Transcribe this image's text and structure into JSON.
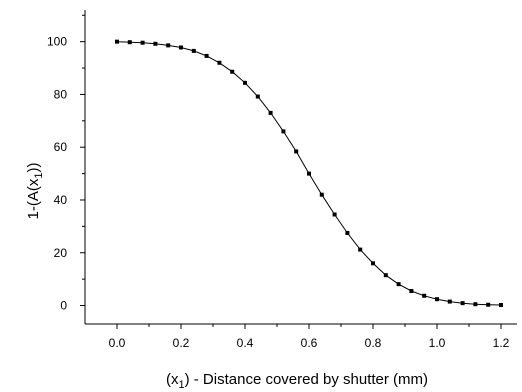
{
  "chart_data": {
    "type": "line",
    "title": "",
    "xlabel": "(x₁) - Distance covered by shutter (mm)",
    "xlabel_parts": {
      "open": "(x",
      "sub": "1",
      "close": ") - Distance covered by shutter (mm)"
    },
    "ylabel": "1-(A(x₁))",
    "ylabel_parts": {
      "open": "1-(A(x",
      "sub": "1",
      "close": "))"
    },
    "xlim": [
      -0.1,
      1.25
    ],
    "ylim": [
      -7,
      112
    ],
    "xticks": [
      0.0,
      0.2,
      0.4,
      0.6,
      0.8,
      1.0,
      1.2
    ],
    "xtick_labels": [
      "0.0",
      "0.2",
      "0.4",
      "0.6",
      "0.8",
      "1.0",
      "1.2"
    ],
    "yticks": [
      0,
      20,
      40,
      60,
      80,
      100
    ],
    "ytick_labels": [
      "0",
      "20",
      "40",
      "60",
      "80",
      "100"
    ],
    "grid": false,
    "legend": "none",
    "line_color": "#000000",
    "marker": "square",
    "series": [
      {
        "x": [
          0.0,
          0.04,
          0.08,
          0.12,
          0.16,
          0.2,
          0.24,
          0.28,
          0.32,
          0.36,
          0.4,
          0.44,
          0.48,
          0.52,
          0.56,
          0.6,
          0.64,
          0.68,
          0.72,
          0.76,
          0.8,
          0.84,
          0.88,
          0.92,
          0.96,
          1.0,
          1.04,
          1.08,
          1.12,
          1.16,
          1.2
        ],
        "values": [
          100,
          99.8,
          99.6,
          99.2,
          98.6,
          97.8,
          96.5,
          94.6,
          92,
          88.6,
          84.4,
          79.2,
          73,
          66,
          58.4,
          50,
          42,
          34.5,
          27.5,
          21.2,
          16,
          11.5,
          8.1,
          5.5,
          3.7,
          2.4,
          1.5,
          0.9,
          0.5,
          0.3,
          0.2
        ]
      }
    ]
  }
}
